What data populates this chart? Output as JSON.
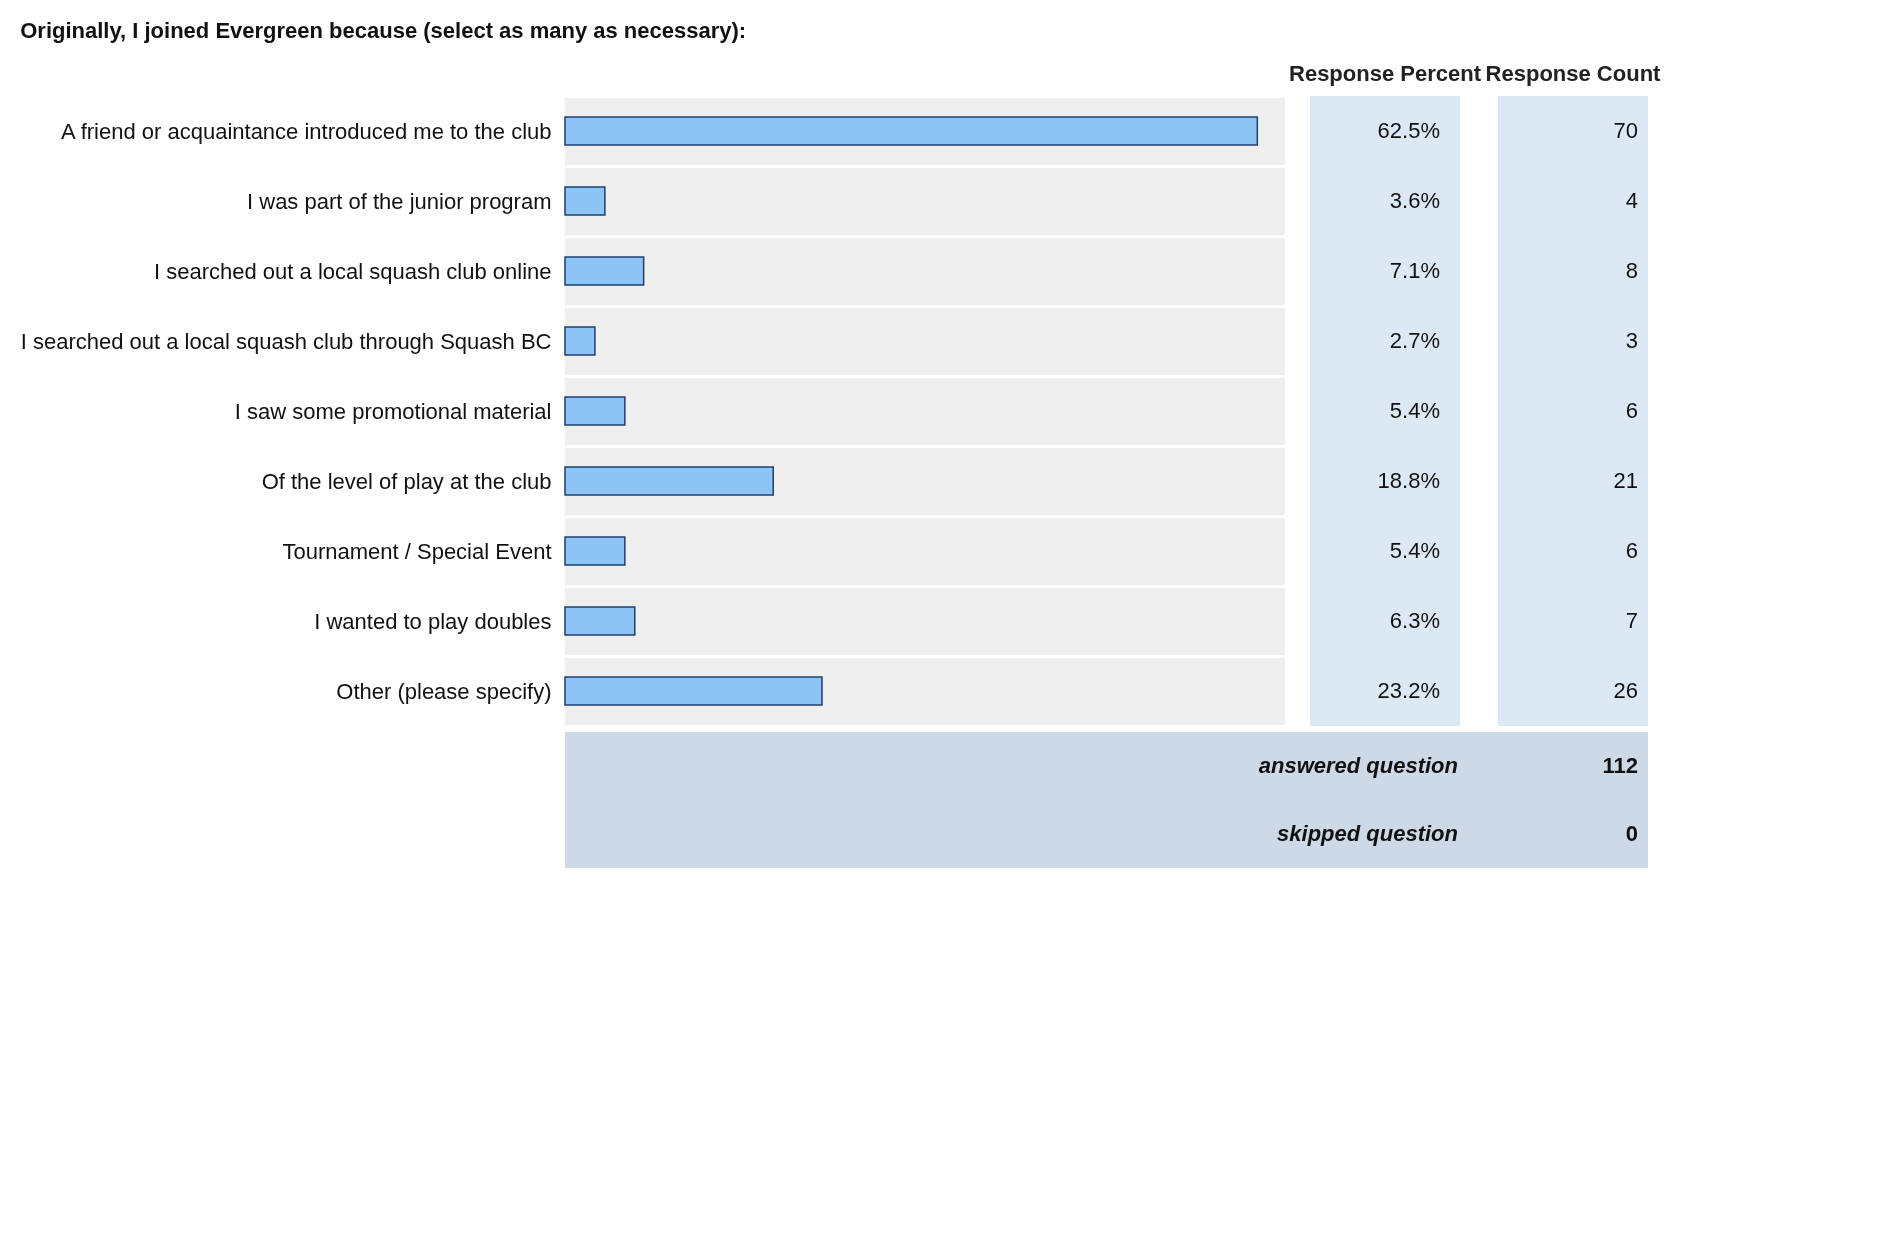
{
  "chart_data": {
    "type": "bar",
    "orientation": "horizontal",
    "title": "Originally, I joined Evergreen because (select as many as necessary):",
    "categories": [
      "A friend or acquaintance introduced me to the club",
      "I was part of the junior program",
      "I searched out a local squash club online",
      "I searched out a local squash club through Squash BC",
      "I saw some promotional material",
      "Of the level of play at the club",
      "Tournament / Special Event",
      "I wanted to play doubles",
      "Other (please specify)"
    ],
    "values": [
      62.5,
      3.6,
      7.1,
      2.7,
      5.4,
      18.8,
      5.4,
      6.3,
      23.2
    ],
    "value_labels": [
      "62.5%",
      "3.6%",
      "7.1%",
      "2.7%",
      "5.4%",
      "18.8%",
      "5.4%",
      "6.3%",
      "23.2%"
    ],
    "color": "#8cc4f5",
    "annotations": [
      "Response Percent",
      "Response Count",
      "70",
      "4",
      "8",
      "3",
      "6",
      "21",
      "6",
      "7",
      "26",
      "answered question",
      "112",
      "skipped question",
      "0"
    ]
  }
}
